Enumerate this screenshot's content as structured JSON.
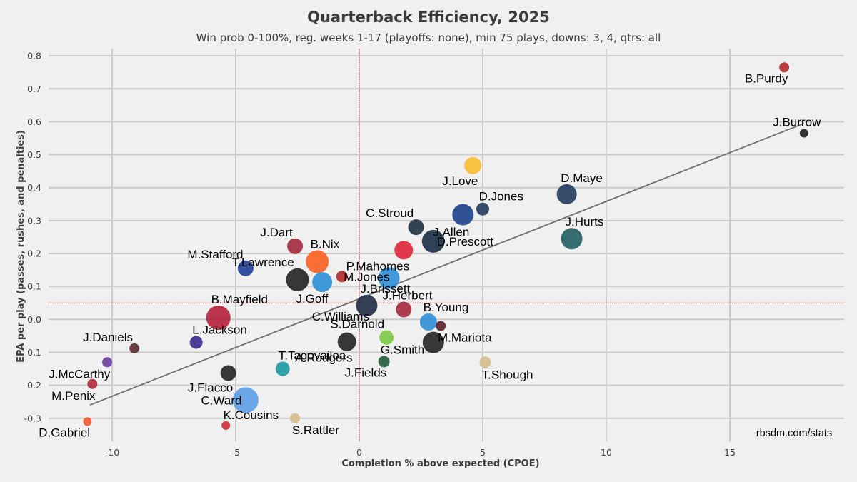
{
  "chart_data": {
    "type": "scatter",
    "title": "Quarterback Efficiency, 2025",
    "subtitle": "Win prob 0-100%, reg. weeks 1-17 (playoffs: none), min 75 plays, downs: 3, 4, qtrs: all",
    "xlabel": "Completion % above expected (CPOE)",
    "ylabel": "EPA per play (passes, rushes, and penalties)",
    "xlim": [
      -12.5,
      20
    ],
    "ylim": [
      -0.35,
      0.82
    ],
    "xticks": [
      -10,
      -5,
      0,
      5,
      10,
      15
    ],
    "yticks": [
      -0.3,
      -0.2,
      -0.1,
      0.0,
      0.1,
      0.2,
      0.3,
      0.4,
      0.5,
      0.6,
      0.7,
      0.8
    ],
    "ytick_labels": [
      "-0.3",
      "-0.2",
      "-0.1",
      "0.0",
      "0.1",
      "0.2",
      "0.3",
      "0.4",
      "0.5",
      "0.6",
      "0.7",
      "0.8"
    ],
    "mean_x": 0.0,
    "mean_y": 0.05,
    "trend_line": {
      "x": [
        -10.9,
        18.0
      ],
      "y": [
        -0.26,
        0.595
      ]
    },
    "source": "rbsdm.com/stats",
    "points": [
      {
        "name": "B.Purdy",
        "x": 17.2,
        "y": 0.765,
        "size": 7,
        "color": "#b3282c",
        "label_anchor": "below"
      },
      {
        "name": "J.Burrow",
        "x": 18.0,
        "y": 0.565,
        "size": 6,
        "color": "#222222",
        "label_anchor": "above"
      },
      {
        "name": "J.Love",
        "x": 4.6,
        "y": 0.467,
        "size": 12,
        "color": "#fbbd30",
        "label_anchor": "below-left"
      },
      {
        "name": "D.Maye",
        "x": 8.4,
        "y": 0.38,
        "size": 14,
        "color": "#203a5c",
        "label_anchor": "above-right"
      },
      {
        "name": "D.Jones",
        "x": 5.0,
        "y": 0.335,
        "size": 9,
        "color": "#203a5c",
        "label_anchor": "above-right"
      },
      {
        "name": "J.Allen",
        "x": 4.2,
        "y": 0.318,
        "size": 15,
        "color": "#1c3f8c",
        "label_anchor": "below-left"
      },
      {
        "name": "C.Stroud",
        "x": 2.3,
        "y": 0.28,
        "size": 11,
        "color": "#1e3040",
        "label_anchor": "above-left"
      },
      {
        "name": "D.Prescott",
        "x": 3.0,
        "y": 0.237,
        "size": 16,
        "color": "#1b2c45",
        "label_anchor": "right"
      },
      {
        "name": "J.Hurts",
        "x": 8.6,
        "y": 0.245,
        "size": 15,
        "color": "#1f5d61",
        "label_anchor": "above-right"
      },
      {
        "name": "J.Dart",
        "x": -2.6,
        "y": 0.222,
        "size": 11,
        "color": "#a3283c",
        "label_anchor": "above-left"
      },
      {
        "name": "P.Mahomes",
        "x": 1.8,
        "y": 0.21,
        "size": 13,
        "color": "#e0243a",
        "label_anchor": "below-left"
      },
      {
        "name": "B.Nix",
        "x": -1.7,
        "y": 0.175,
        "size": 16,
        "color": "#fb5f1f",
        "label_anchor": "above-right"
      },
      {
        "name": "M.Stafford",
        "x": -4.6,
        "y": 0.155,
        "size": 11,
        "color": "#1e3f96",
        "label_anchor": "above-left"
      },
      {
        "name": "M.Jones",
        "x": -0.7,
        "y": 0.13,
        "size": 8,
        "color": "#b22a2e",
        "label_anchor": "right"
      },
      {
        "name": "T.Lawrence",
        "x": -2.5,
        "y": 0.12,
        "size": 16,
        "color": "#222222",
        "label_anchor": "above-left"
      },
      {
        "name": "J.Herbert",
        "x": 1.2,
        "y": 0.125,
        "size": 15,
        "color": "#2d8fd6",
        "label_anchor": "below-right"
      },
      {
        "name": "J.Goff",
        "x": -1.5,
        "y": 0.113,
        "size": 14,
        "color": "#2d8fd6",
        "label_anchor": "below-left"
      },
      {
        "name": "J.Brissett",
        "x": 0.3,
        "y": 0.042,
        "size": 15,
        "color": "#1e2c44",
        "label_anchor": "above-right"
      },
      {
        "name": "C.Williams",
        "x": 0.3,
        "y": 0.042,
        "size": 0,
        "color": "#1e2c44",
        "label_anchor": "below-left"
      },
      {
        "name": "B.Mayfield",
        "x": -5.7,
        "y": 0.005,
        "size": 17,
        "color": "#b21f3a",
        "label_anchor": "above-right"
      },
      {
        "name": "unlabeled",
        "x": 1.8,
        "y": 0.03,
        "size": 11,
        "color": "#a3283c",
        "label_anchor": "none"
      },
      {
        "name": "B.Young",
        "x": 2.8,
        "y": -0.008,
        "size": 12,
        "color": "#2d8fd6",
        "label_anchor": "above-right"
      },
      {
        "name": "M.Mariota",
        "x": 3.3,
        "y": -0.02,
        "size": 7,
        "color": "#5a2028",
        "label_anchor": "below-right"
      },
      {
        "name": "S.Darnold",
        "x": 1.1,
        "y": -0.055,
        "size": 10,
        "color": "#7ac943",
        "label_anchor": "above-left"
      },
      {
        "name": "unlabeled",
        "x": 3.0,
        "y": -0.07,
        "size": 15,
        "color": "#222222",
        "label_anchor": "none"
      },
      {
        "name": "A.Rodgers",
        "x": -0.5,
        "y": -0.068,
        "size": 13,
        "color": "#222222",
        "label_anchor": "below-left"
      },
      {
        "name": "G.Smith",
        "x": 1.0,
        "y": -0.128,
        "size": 8,
        "color": "#1f5a3a",
        "label_anchor": "above-right"
      },
      {
        "name": "J.Fields",
        "x": 1.0,
        "y": -0.128,
        "size": 0,
        "color": "#1f5a3a",
        "label_anchor": "below-left"
      },
      {
        "name": "T.Shough",
        "x": 5.1,
        "y": -0.13,
        "size": 8,
        "color": "#d6bc8c",
        "label_anchor": "below-right"
      },
      {
        "name": "J.Daniels",
        "x": -9.1,
        "y": -0.088,
        "size": 7,
        "color": "#5a2a2e",
        "label_anchor": "above-left"
      },
      {
        "name": "L.Jackson",
        "x": -6.6,
        "y": -0.07,
        "size": 9,
        "color": "#3a2a8c",
        "label_anchor": "above-right"
      },
      {
        "name": "T.Tagovailoa",
        "x": -3.1,
        "y": -0.15,
        "size": 10,
        "color": "#1a9aa0",
        "label_anchor": "above-right"
      },
      {
        "name": "J.McCarthy",
        "x": -10.2,
        "y": -0.13,
        "size": 7,
        "color": "#6a3aa0",
        "label_anchor": "below-left"
      },
      {
        "name": "J.Flacco",
        "x": -5.3,
        "y": -0.163,
        "size": 11,
        "color": "#222222",
        "label_anchor": "below-left"
      },
      {
        "name": "M.Penix",
        "x": -10.8,
        "y": -0.196,
        "size": 7,
        "color": "#b3283c",
        "label_anchor": "below-left"
      },
      {
        "name": "C.Ward",
        "x": -4.6,
        "y": -0.245,
        "size": 18,
        "color": "#5a9ee6",
        "label_anchor": "left"
      },
      {
        "name": "K.Cousins",
        "x": -5.4,
        "y": -0.322,
        "size": 6,
        "color": "#cc2a3a",
        "label_anchor": "above-right"
      },
      {
        "name": "S.Rattler",
        "x": -2.6,
        "y": -0.3,
        "size": 7,
        "color": "#d6bc8c",
        "label_anchor": "below-right"
      },
      {
        "name": "D.Gabriel",
        "x": -11.0,
        "y": -0.31,
        "size": 6,
        "color": "#f2572a",
        "label_anchor": "below-left"
      }
    ]
  }
}
